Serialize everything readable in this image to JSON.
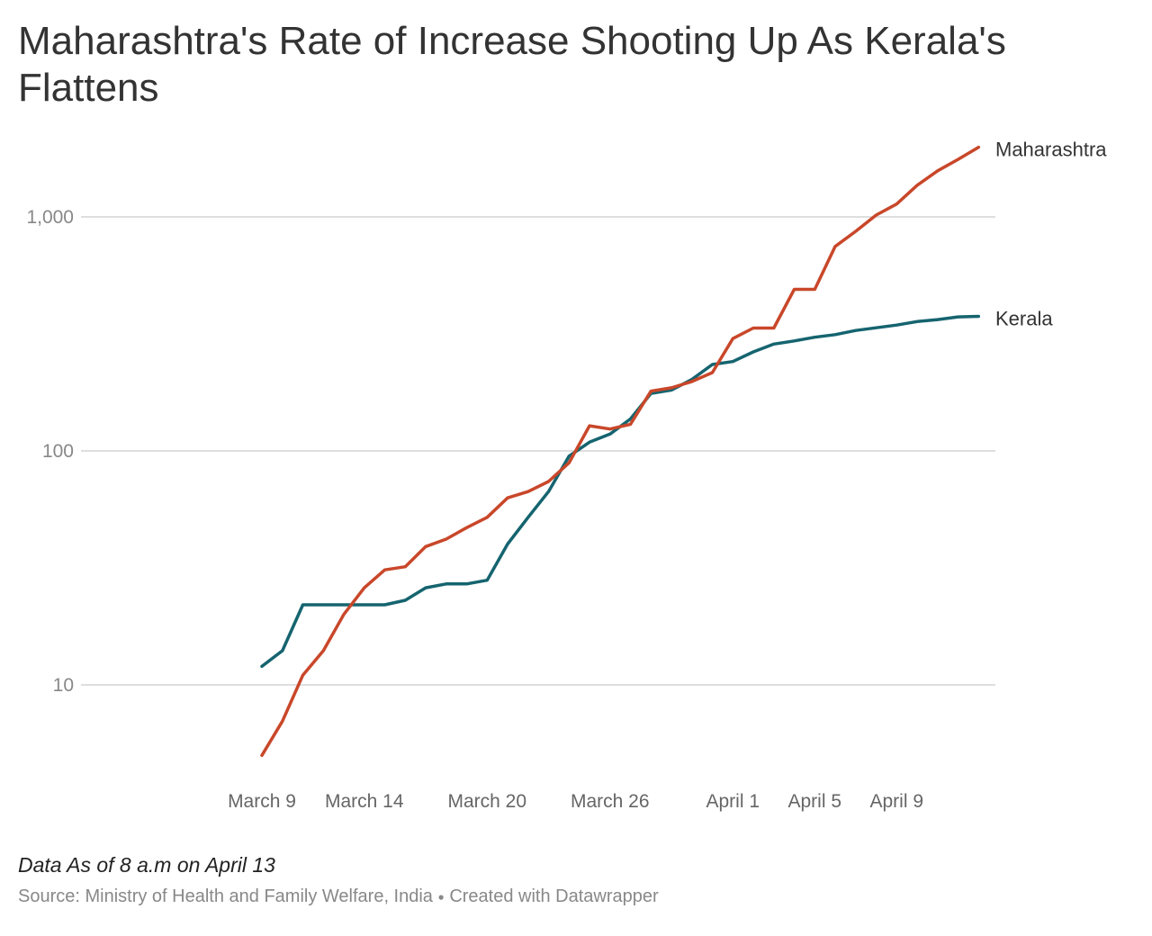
{
  "chart_data": {
    "type": "line",
    "title": "Maharashtra's Rate of Increase Shooting Up As Kerala's Flattens",
    "xlabel": "",
    "ylabel": "",
    "yscale": "log",
    "ylim": [
      5,
      2000
    ],
    "grid": "horizontal",
    "yticks": [
      {
        "value": 10,
        "label": "10"
      },
      {
        "value": 100,
        "label": "100"
      },
      {
        "value": 1000,
        "label": "1,000"
      }
    ],
    "xticks": [
      {
        "date": "2020-03-09",
        "label": "March 9"
      },
      {
        "date": "2020-03-14",
        "label": "March 14"
      },
      {
        "date": "2020-03-20",
        "label": "March 20"
      },
      {
        "date": "2020-03-26",
        "label": "March 26"
      },
      {
        "date": "2020-04-01",
        "label": "April 1"
      },
      {
        "date": "2020-04-05",
        "label": "April 5"
      },
      {
        "date": "2020-04-09",
        "label": "April 9"
      }
    ],
    "x": [
      "2020-03-09",
      "2020-03-10",
      "2020-03-11",
      "2020-03-12",
      "2020-03-13",
      "2020-03-14",
      "2020-03-15",
      "2020-03-16",
      "2020-03-17",
      "2020-03-18",
      "2020-03-19",
      "2020-03-20",
      "2020-03-21",
      "2020-03-22",
      "2020-03-23",
      "2020-03-24",
      "2020-03-25",
      "2020-03-26",
      "2020-03-27",
      "2020-03-28",
      "2020-03-29",
      "2020-03-30",
      "2020-03-31",
      "2020-04-01",
      "2020-04-02",
      "2020-04-03",
      "2020-04-04",
      "2020-04-05",
      "2020-04-06",
      "2020-04-07",
      "2020-04-08",
      "2020-04-09",
      "2020-04-10",
      "2020-04-11",
      "2020-04-12",
      "2020-04-13"
    ],
    "series": [
      {
        "name": "Maharashtra",
        "color": "#c9472a",
        "values": [
          5,
          7,
          11,
          14,
          20,
          26,
          31,
          32,
          39,
          42,
          47,
          52,
          63,
          67,
          74,
          89,
          128,
          124,
          130,
          180,
          186,
          198,
          216,
          302,
          335,
          335,
          490,
          490,
          748,
          868,
          1018,
          1135,
          1364,
          1574,
          1761,
          1985
        ]
      },
      {
        "name": "Kerala",
        "color": "#15646f",
        "values": [
          12,
          14,
          22,
          22,
          22,
          22,
          22,
          23,
          26,
          27,
          27,
          28,
          40,
          52,
          67,
          95,
          109,
          118,
          137,
          176,
          182,
          202,
          234,
          241,
          265,
          286,
          295,
          306,
          314,
          327,
          336,
          345,
          357,
          364,
          374,
          376
        ]
      }
    ],
    "legend": "line-end labels"
  },
  "note": "Data As of 8 a.m on April 13",
  "source": "Source: Ministry of Health and Family Welfare, India",
  "source_dot": "●",
  "credit": "Created with Datawrapper"
}
